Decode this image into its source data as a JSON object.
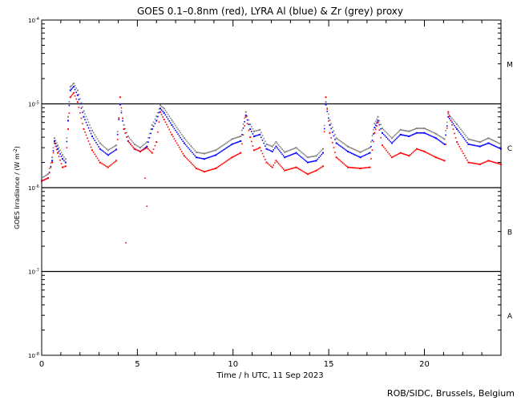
{
  "chart_data": {
    "type": "scatter",
    "title": "GOES 0.1–0.8nm (red), LYRA Al (blue) & Zr (grey) proxy",
    "xlabel": "Time / h UTC, 11 Sep 2023",
    "ylabel": "GOES Irradiance / (W m",
    "ylabel_sup": "-2",
    "ylabel_end": ")",
    "xlim": [
      0,
      24
    ],
    "ylim": [
      1e-08,
      0.0001
    ],
    "yscale": "log",
    "xticks": [
      "0",
      "5",
      "10",
      "15",
      "20"
    ],
    "xtick_values": [
      0,
      5,
      10,
      15,
      20
    ],
    "yticks": [
      {
        "base": "10",
        "exp": "-4",
        "value": 0.0001
      },
      {
        "base": "10",
        "exp": "-5",
        "value": 1e-05
      },
      {
        "base": "10",
        "exp": "-6",
        "value": 1e-06
      },
      {
        "base": "10",
        "exp": "-7",
        "value": 1e-07
      },
      {
        "base": "10",
        "exp": "-8",
        "value": 1e-08
      }
    ],
    "flare_classes": [
      {
        "label": "M",
        "value": 3e-05
      },
      {
        "label": "C",
        "value": 3e-06
      },
      {
        "label": "B",
        "value": 3e-07
      },
      {
        "label": "A",
        "value": 3e-08
      }
    ],
    "x": [
      0,
      0.33,
      0.55,
      0.67,
      0.84,
      1.09,
      1.25,
      1.38,
      1.5,
      1.67,
      1.88,
      2.2,
      2.64,
      3.05,
      3.47,
      3.9,
      4.1,
      4.3,
      4.52,
      4.85,
      5.15,
      5.5,
      5.77,
      6.0,
      6.2,
      6.4,
      6.8,
      7.45,
      8.08,
      8.5,
      9.1,
      9.95,
      10.4,
      10.67,
      10.9,
      11.1,
      11.4,
      11.75,
      12.05,
      12.25,
      12.7,
      13.3,
      13.9,
      14.35,
      14.7,
      14.85,
      15.06,
      15.4,
      16.0,
      16.65,
      17.15,
      17.4,
      17.57,
      17.8,
      18.3,
      18.75,
      19.2,
      19.6,
      20.0,
      20.6,
      21.05,
      21.25,
      21.7,
      22.3,
      22.9,
      23.35,
      24
    ],
    "series": [
      {
        "name": "LYRA Zr proxy",
        "color": "#808080",
        "values": [
          1.3e-06,
          1.45e-06,
          2.3e-06,
          3.9e-06,
          3.2e-06,
          2.45e-06,
          2.2e-06,
          7e-06,
          1.6e-05,
          1.75e-05,
          1.45e-05,
          8.2e-06,
          4.8e-06,
          3.4e-06,
          2.8e-06,
          3.2e-06,
          1e-05,
          5.6e-06,
          4.1e-06,
          3.3e-06,
          3e-06,
          3.5e-06,
          5.6e-06,
          7.1e-06,
          9.6e-06,
          8.8e-06,
          6.4e-06,
          3.9e-06,
          2.65e-06,
          2.55e-06,
          2.8e-06,
          3.8e-06,
          4.1e-06,
          8e-06,
          5.7e-06,
          4.7e-06,
          4.9e-06,
          3.3e-06,
          3.1e-06,
          3.5e-06,
          2.65e-06,
          3e-06,
          2.3e-06,
          2.4e-06,
          2.9e-06,
          1.05e-05,
          6.4e-06,
          3.9e-06,
          3.1e-06,
          2.65e-06,
          3e-06,
          5.8e-06,
          7e-06,
          5.1e-06,
          3.9e-06,
          4.9e-06,
          4.7e-06,
          5.1e-06,
          5.1e-06,
          4.4e-06,
          3.8e-06,
          7.6e-06,
          5.7e-06,
          3.8e-06,
          3.5e-06,
          3.9e-06,
          3.3e-06
        ]
      },
      {
        "name": "LYRA Al proxy",
        "color": "#0000ff",
        "values": [
          1.2e-06,
          1.3e-06,
          2.1e-06,
          3.6e-06,
          2.9e-06,
          2.2e-06,
          2e-06,
          6.3e-06,
          1.45e-05,
          1.6e-05,
          1.27e-05,
          7e-06,
          4.1e-06,
          2.9e-06,
          2.45e-06,
          2.85e-06,
          9.8e-06,
          5e-06,
          3.6e-06,
          2.9e-06,
          2.7e-06,
          3.1e-06,
          5e-06,
          6.3e-06,
          8.8e-06,
          7.8e-06,
          5.6e-06,
          3.4e-06,
          2.3e-06,
          2.2e-06,
          2.45e-06,
          3.3e-06,
          3.6e-06,
          7.3e-06,
          5e-06,
          4.1e-06,
          4.3e-06,
          2.9e-06,
          2.7e-06,
          3.1e-06,
          2.3e-06,
          2.6e-06,
          2e-06,
          2.1e-06,
          2.6e-06,
          9.8e-06,
          5.6e-06,
          3.4e-06,
          2.7e-06,
          2.3e-06,
          2.6e-06,
          5.2e-06,
          6.3e-06,
          4.5e-06,
          3.4e-06,
          4.3e-06,
          4.1e-06,
          4.5e-06,
          4.5e-06,
          3.9e-06,
          3.3e-06,
          7e-06,
          5e-06,
          3.3e-06,
          3.1e-06,
          3.4e-06,
          2.9e-06
        ]
      },
      {
        "name": "GOES 0.1-0.8nm",
        "color": "#ff0000",
        "values": [
          1.2e-06,
          1.3e-06,
          2e-06,
          3.4e-06,
          2.6e-06,
          1.75e-06,
          1.8e-06,
          5e-06,
          1.2e-05,
          1.35e-05,
          1.05e-05,
          5e-06,
          2.8e-06,
          2e-06,
          1.75e-06,
          2.1e-06,
          1.2e-05,
          5e-06,
          3.6e-06,
          2.9e-06,
          2.7e-06,
          3e-06,
          2.6e-06,
          3.5e-06,
          8e-06,
          6.5e-06,
          4.3e-06,
          2.4e-06,
          1.7e-06,
          1.55e-06,
          1.7e-06,
          2.3e-06,
          2.6e-06,
          7e-06,
          4e-06,
          2.8e-06,
          3e-06,
          2e-06,
          1.75e-06,
          2.1e-06,
          1.6e-06,
          1.75e-06,
          1.45e-06,
          1.6e-06,
          1.8e-06,
          1.2e-05,
          4.5e-06,
          2.3e-06,
          1.75e-06,
          1.7e-06,
          1.75e-06,
          4.5e-06,
          6e-06,
          3.2e-06,
          2.3e-06,
          2.6e-06,
          2.4e-06,
          2.9e-06,
          2.7e-06,
          2.3e-06,
          2.1e-06,
          8e-06,
          3.5e-06,
          2e-06,
          1.9e-06,
          2.1e-06,
          1.9e-06
        ]
      }
    ],
    "outliers": [
      {
        "series": "GOES 0.1-0.8nm",
        "x": 4.4,
        "y": 2.2e-07
      },
      {
        "series": "GOES 0.1-0.8nm",
        "x": 5.5,
        "y": 6e-07
      },
      {
        "series": "GOES 0.1-0.8nm",
        "x": 5.4,
        "y": 1.3e-06
      }
    ],
    "grid_lines": [
      1e-05,
      1e-06,
      1e-07
    ]
  },
  "footer": {
    "credit": "ROB/SIDC, Brussels, Belgium"
  }
}
